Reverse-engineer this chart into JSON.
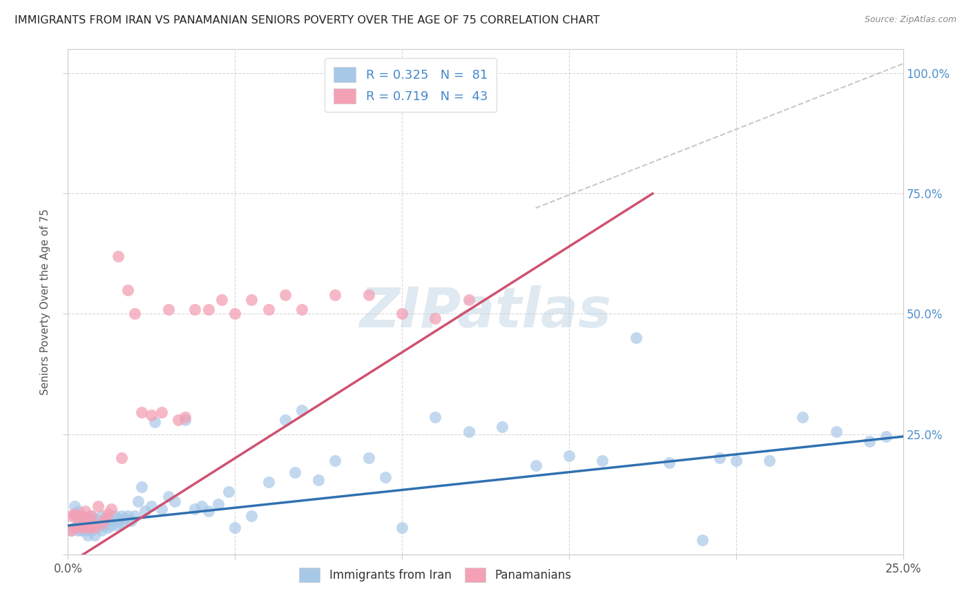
{
  "title": "IMMIGRANTS FROM IRAN VS PANAMANIAN SENIORS POVERTY OVER THE AGE OF 75 CORRELATION CHART",
  "source": "Source: ZipAtlas.com",
  "ylabel": "Seniors Poverty Over the Age of 75",
  "xlim": [
    0.0,
    0.25
  ],
  "ylim": [
    0.0,
    1.05
  ],
  "legend_blue_r": "R = 0.325",
  "legend_blue_n": "N =  81",
  "legend_pink_r": "R = 0.719",
  "legend_pink_n": "N =  43",
  "blue_color": "#a8c8e8",
  "pink_color": "#f4a0b5",
  "blue_line_color": "#3070b0",
  "pink_line_color": "#d05070",
  "dashed_line_color": "#bbbbbb",
  "watermark": "ZIPatlas",
  "background_color": "#ffffff",
  "grid_color": "#d8d8d8",
  "blue_x": [
    0.001,
    0.002,
    0.002,
    0.003,
    0.003,
    0.003,
    0.004,
    0.004,
    0.004,
    0.005,
    0.005,
    0.005,
    0.006,
    0.006,
    0.006,
    0.007,
    0.007,
    0.007,
    0.008,
    0.008,
    0.008,
    0.009,
    0.009,
    0.01,
    0.01,
    0.01,
    0.011,
    0.012,
    0.012,
    0.013,
    0.013,
    0.014,
    0.015,
    0.015,
    0.016,
    0.016,
    0.017,
    0.018,
    0.019,
    0.02,
    0.021,
    0.022,
    0.023,
    0.025,
    0.026,
    0.028,
    0.03,
    0.032,
    0.035,
    0.038,
    0.04,
    0.042,
    0.045,
    0.048,
    0.05,
    0.055,
    0.06,
    0.065,
    0.068,
    0.07,
    0.075,
    0.08,
    0.09,
    0.095,
    0.1,
    0.11,
    0.12,
    0.13,
    0.14,
    0.15,
    0.16,
    0.17,
    0.18,
    0.19,
    0.195,
    0.2,
    0.21,
    0.22,
    0.23,
    0.24,
    0.245
  ],
  "blue_y": [
    0.05,
    0.08,
    0.1,
    0.05,
    0.07,
    0.09,
    0.05,
    0.06,
    0.08,
    0.05,
    0.06,
    0.075,
    0.04,
    0.055,
    0.075,
    0.05,
    0.06,
    0.08,
    0.04,
    0.055,
    0.075,
    0.06,
    0.07,
    0.05,
    0.06,
    0.08,
    0.065,
    0.055,
    0.075,
    0.06,
    0.07,
    0.08,
    0.06,
    0.075,
    0.065,
    0.08,
    0.075,
    0.08,
    0.07,
    0.08,
    0.11,
    0.14,
    0.09,
    0.1,
    0.275,
    0.095,
    0.12,
    0.11,
    0.28,
    0.095,
    0.1,
    0.09,
    0.105,
    0.13,
    0.055,
    0.08,
    0.15,
    0.28,
    0.17,
    0.3,
    0.155,
    0.195,
    0.2,
    0.16,
    0.055,
    0.285,
    0.255,
    0.265,
    0.185,
    0.205,
    0.195,
    0.45,
    0.19,
    0.03,
    0.2,
    0.195,
    0.195,
    0.285,
    0.255,
    0.235,
    0.245
  ],
  "pink_x": [
    0.001,
    0.001,
    0.002,
    0.002,
    0.003,
    0.003,
    0.004,
    0.004,
    0.005,
    0.005,
    0.006,
    0.006,
    0.007,
    0.007,
    0.008,
    0.009,
    0.01,
    0.011,
    0.012,
    0.013,
    0.015,
    0.016,
    0.018,
    0.02,
    0.022,
    0.025,
    0.028,
    0.03,
    0.033,
    0.035,
    0.038,
    0.042,
    0.046,
    0.05,
    0.055,
    0.06,
    0.065,
    0.07,
    0.08,
    0.09,
    0.1,
    0.11,
    0.12
  ],
  "pink_y": [
    0.05,
    0.08,
    0.055,
    0.085,
    0.06,
    0.08,
    0.055,
    0.08,
    0.06,
    0.09,
    0.055,
    0.075,
    0.06,
    0.08,
    0.055,
    0.1,
    0.065,
    0.075,
    0.085,
    0.095,
    0.62,
    0.2,
    0.55,
    0.5,
    0.295,
    0.29,
    0.295,
    0.51,
    0.28,
    0.285,
    0.51,
    0.51,
    0.53,
    0.5,
    0.53,
    0.51,
    0.54,
    0.51,
    0.54,
    0.54,
    0.5,
    0.49,
    0.53
  ],
  "blue_line_x0": 0.0,
  "blue_line_y0": 0.06,
  "blue_line_x1": 0.25,
  "blue_line_y1": 0.245,
  "pink_line_x0": 0.0,
  "pink_line_y0": -0.02,
  "pink_line_x1": 0.175,
  "pink_line_y1": 0.75,
  "dash_line_x0": 0.14,
  "dash_line_y0": 0.72,
  "dash_line_x1": 0.25,
  "dash_line_y1": 1.02
}
